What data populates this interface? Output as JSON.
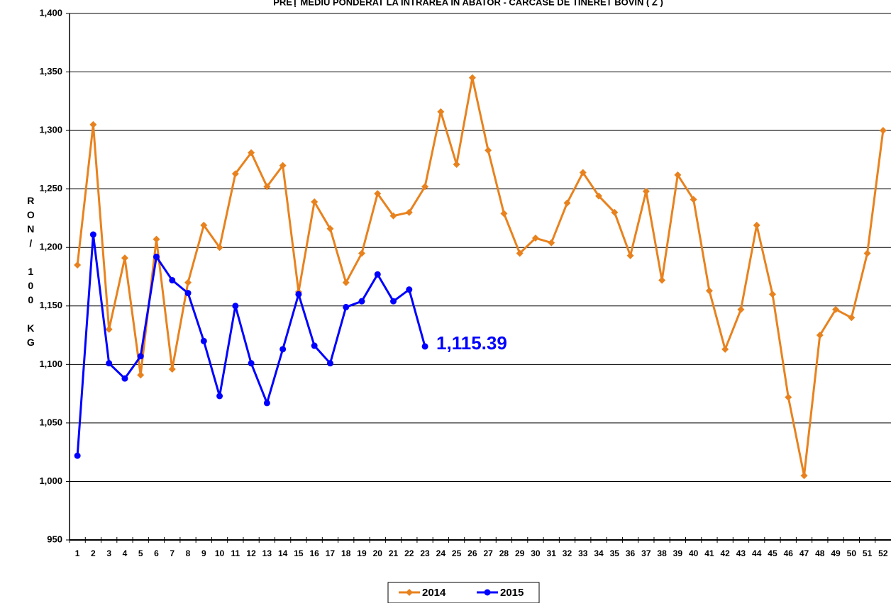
{
  "chart_data": {
    "type": "line",
    "title": "PREŢ MEDIU PONDERAT LA INTRAREA ÎN ABATOR - CARCASE DE TINERET BOVIN ( Z )",
    "y_label": "RON/ 100 KG",
    "categories": [
      "1",
      "2",
      "3",
      "4",
      "5",
      "6",
      "7",
      "8",
      "9",
      "10",
      "11",
      "12",
      "13",
      "14",
      "15",
      "16",
      "17",
      "18",
      "19",
      "20",
      "21",
      "22",
      "23",
      "24",
      "25",
      "26",
      "27",
      "28",
      "29",
      "30",
      "31",
      "32",
      "33",
      "34",
      "35",
      "36",
      "37",
      "38",
      "39",
      "40",
      "41",
      "42",
      "43",
      "44",
      "45",
      "46",
      "47",
      "48",
      "49",
      "50",
      "51",
      "52"
    ],
    "series": [
      {
        "name": "2014",
        "color": "#e8821e",
        "marker": "diamond",
        "values": [
          1185,
          1305,
          1130,
          1191,
          1091,
          1207,
          1096,
          1170,
          1219,
          1200,
          1263,
          1281,
          1252,
          1270,
          1162,
          1239,
          1216,
          1170,
          1195,
          1246,
          1227,
          1230,
          1252,
          1316,
          1271,
          1345,
          1283,
          1229,
          1195,
          1208,
          1204,
          1238,
          1264,
          1244,
          1230,
          1193,
          1248,
          1172,
          1262,
          1241,
          1163,
          1113,
          1147,
          1219,
          1160,
          1072,
          1005,
          1125,
          1147,
          1140,
          1195,
          1300
        ]
      },
      {
        "name": "2015",
        "color": "#0000ff",
        "marker": "circle",
        "values": [
          1022,
          1211,
          1101,
          1088,
          1107,
          1192,
          1172,
          1161,
          1120,
          1073,
          1150,
          1101,
          1067,
          1113,
          1160,
          1116,
          1101,
          1149,
          1154,
          1177,
          1154,
          1164,
          1115.39,
          null,
          null,
          null,
          null,
          null,
          null,
          null,
          null,
          null,
          null,
          null,
          null,
          null,
          null,
          null,
          null,
          null,
          null,
          null,
          null,
          null,
          null,
          null,
          null,
          null,
          null,
          null,
          null,
          null
        ],
        "value_labels": [
          null,
          null,
          null,
          null,
          null,
          null,
          null,
          null,
          null,
          null,
          null,
          null,
          null,
          null,
          null,
          null,
          null,
          null,
          null,
          null,
          null,
          null,
          "1,115.39",
          null,
          null,
          null,
          null,
          null,
          null,
          null,
          null,
          null,
          null,
          null,
          null,
          null,
          null,
          null,
          null,
          null,
          null,
          null,
          null,
          null,
          null,
          null,
          null,
          null,
          null,
          null,
          null,
          null
        ]
      }
    ],
    "ylim": [
      950,
      1400
    ],
    "yticks": [
      950,
      {
        "value": 1000,
        "label": "1,000"
      },
      {
        "value": 1050,
        "label": "1,050"
      },
      {
        "value": 1100,
        "label": "1,100"
      },
      {
        "value": 1150,
        "label": "1,150"
      },
      {
        "value": 1200,
        "label": "1,200"
      },
      {
        "value": 1250,
        "label": "1,250"
      },
      {
        "value": 1300,
        "label": "1,300"
      },
      {
        "value": 1350,
        "label": "1,350"
      },
      {
        "value": 1400,
        "label": "1,400"
      }
    ],
    "grid": true,
    "legend": "bottom"
  }
}
